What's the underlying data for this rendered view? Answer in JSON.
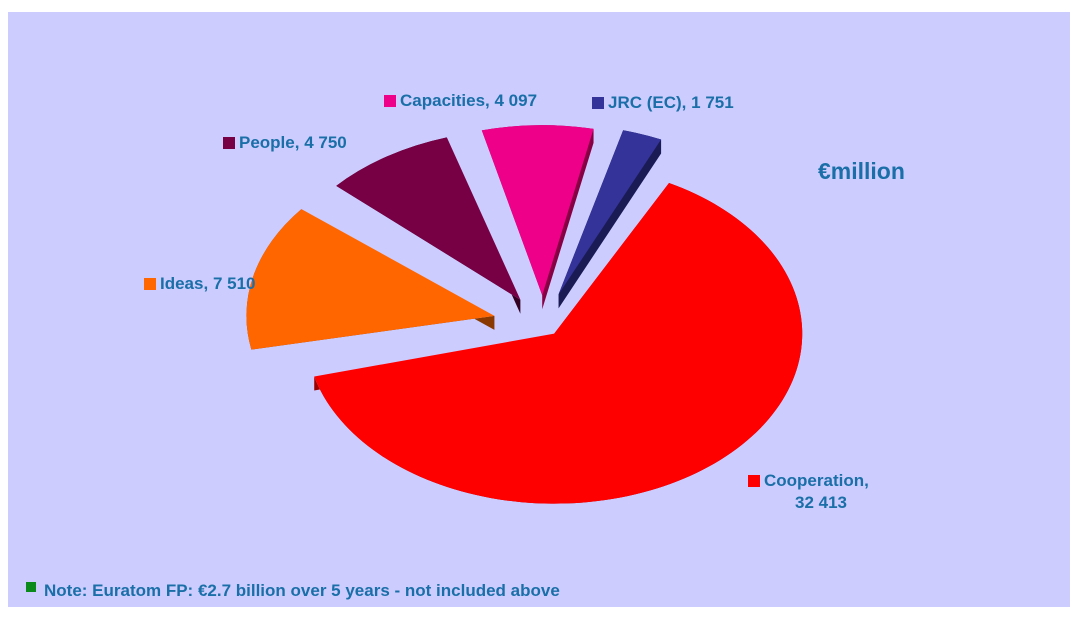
{
  "chart_data": {
    "type": "pie",
    "title": "",
    "unit_label": "€million",
    "slices": [
      {
        "name": "Cooperation",
        "value": 32413,
        "label_name": "Cooperation,",
        "label_value": "32 413",
        "color": "#ff0000",
        "side": "#990000"
      },
      {
        "name": "Ideas",
        "value": 7510,
        "label_name": "Ideas,",
        "label_value": "7 510",
        "color": "#ff6600",
        "side": "#8a3a00"
      },
      {
        "name": "People",
        "value": 4750,
        "label_name": "People,",
        "label_value": "4 750",
        "color": "#770044",
        "side": "#330022"
      },
      {
        "name": "Capacities",
        "value": 4097,
        "label_name": "Capacities,",
        "label_value": "4 097",
        "color": "#ee0088",
        "side": "#880044"
      },
      {
        "name": "JRC (EC)",
        "value": 1751,
        "label_name": "JRC (EC),",
        "label_value": "1 751",
        "color": "#333399",
        "side": "#1a1a55"
      }
    ],
    "note": "Note: Euratom FP: €2.7 billion over 5 years - not included above",
    "note_color": "#0a8a1a",
    "legend": "none"
  }
}
